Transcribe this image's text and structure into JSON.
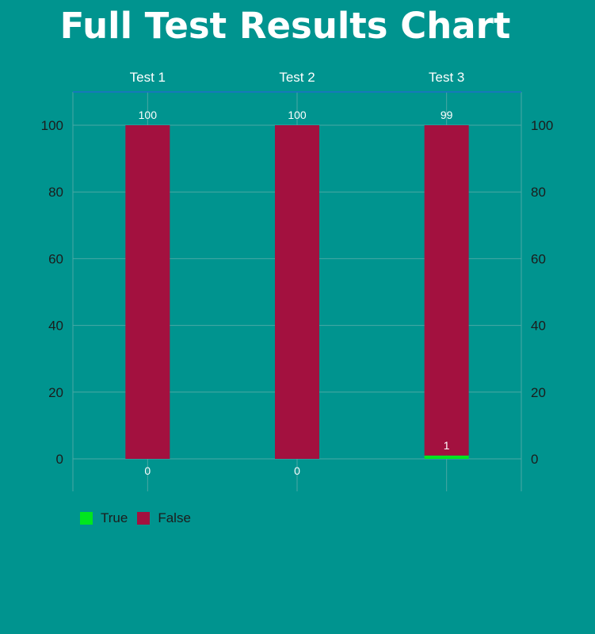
{
  "chart_data": {
    "type": "bar",
    "stacked": true,
    "title": "Full Test Results Chart",
    "categories": [
      "Test 1",
      "Test 2",
      "Test 3"
    ],
    "series": [
      {
        "name": "True",
        "color": "#00E61E",
        "values": [
          0,
          0,
          1
        ]
      },
      {
        "name": "False",
        "color": "#A3113F",
        "values": [
          100,
          100,
          99
        ]
      }
    ],
    "ylim": [
      -10,
      110
    ],
    "yticks": [
      0,
      20,
      40,
      60,
      80,
      100
    ],
    "grid": true,
    "legend": "bottom-left",
    "xaxis_position": "top",
    "yaxis_left": true,
    "yaxis_right": true
  }
}
